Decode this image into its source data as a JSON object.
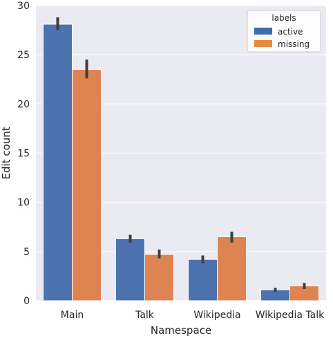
{
  "chart_data": {
    "type": "bar",
    "categories": [
      "Main",
      "Talk",
      "Wikipedia",
      "Wikipedia Talk"
    ],
    "series": [
      {
        "name": "active",
        "values": [
          28.1,
          6.3,
          4.2,
          1.1
        ],
        "error_low": [
          27.5,
          5.9,
          3.8,
          0.9
        ],
        "error_high": [
          28.8,
          6.7,
          4.6,
          1.3
        ],
        "color": "#4c72b0"
      },
      {
        "name": "missing",
        "values": [
          23.5,
          4.7,
          6.5,
          1.5
        ],
        "error_low": [
          22.6,
          4.3,
          5.9,
          1.2
        ],
        "error_high": [
          24.5,
          5.2,
          7.0,
          1.8
        ],
        "color": "#dd8452"
      }
    ],
    "xlabel": "Namespace",
    "ylabel": "Edit count",
    "ylim": [
      0,
      30
    ],
    "yticks": [
      0,
      5,
      10,
      15,
      20,
      25,
      30
    ],
    "grid": true,
    "legend": {
      "title": "labels",
      "placement": "top-right",
      "legend_swatch_colors": [
        "#3c6eaf",
        "#e98a3c"
      ]
    },
    "background_color": "#eaeaf2",
    "error_bar_color": "#3f3f3f"
  }
}
